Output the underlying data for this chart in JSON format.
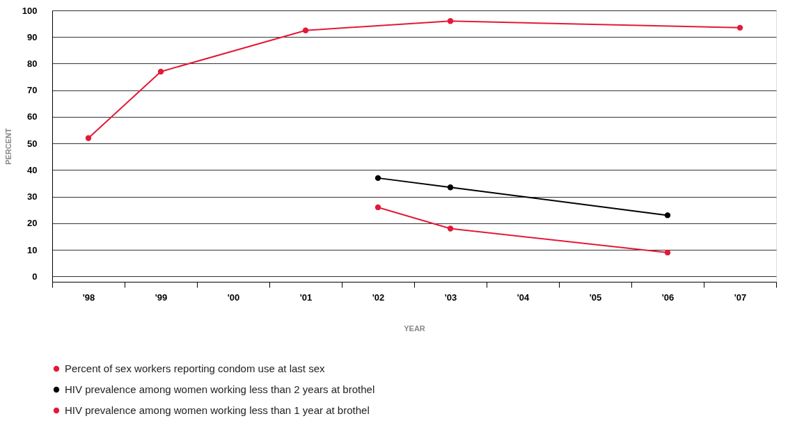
{
  "chart_data": {
    "type": "line",
    "xlabel": "YEAR",
    "ylabel": "PERCENT",
    "categories": [
      "'98",
      "'99",
      "'00",
      "'01",
      "'02",
      "'03",
      "'04",
      "'05",
      "'06",
      "'07"
    ],
    "series": [
      {
        "name": "Percent of sex workers reporting condom use at last sex",
        "color": "#e31937",
        "values": [
          52,
          77,
          null,
          92.5,
          null,
          96,
          null,
          null,
          null,
          93.5
        ]
      },
      {
        "name": "HIV prevalence among women working less than 2 years at brothel",
        "color": "#000000",
        "values": [
          null,
          null,
          null,
          null,
          37,
          33.5,
          null,
          null,
          23,
          null
        ]
      },
      {
        "name": "HIV prevalence among women working less than 1 year at brothel",
        "color": "#e31937",
        "values": [
          null,
          null,
          null,
          null,
          26,
          18,
          null,
          null,
          9,
          null
        ]
      }
    ],
    "ylim": [
      -2,
      100
    ],
    "yticks": [
      0,
      10,
      20,
      30,
      40,
      50,
      60,
      70,
      80,
      90,
      100
    ],
    "grid": "y",
    "legend": "bottom",
    "marker": "circle"
  }
}
